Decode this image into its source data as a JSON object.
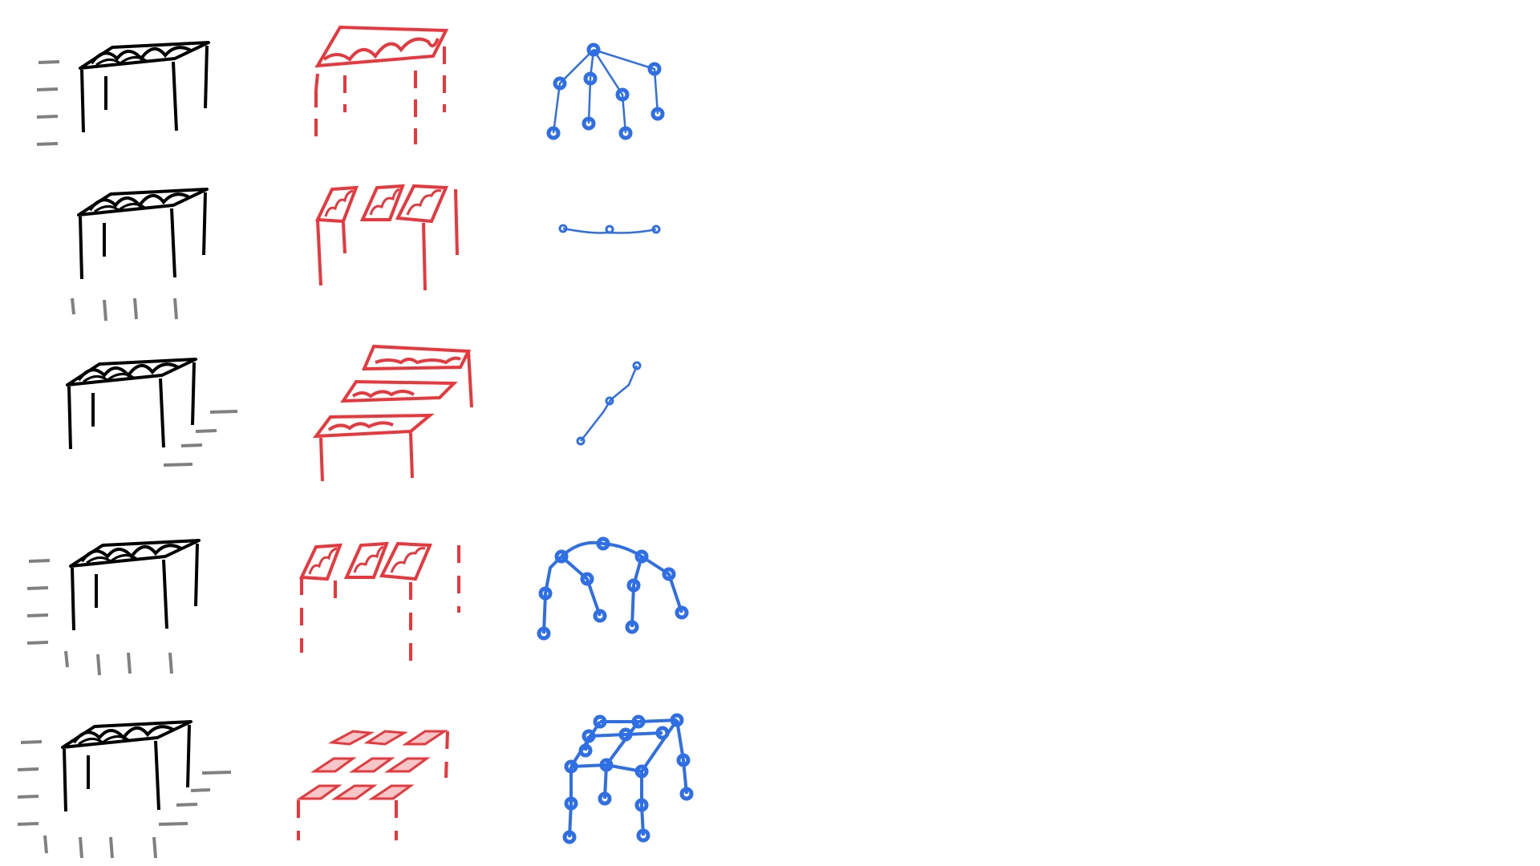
{
  "diagram": {
    "columns": [
      {
        "key": "table",
        "color": "#000000",
        "marks_color": "#808080"
      },
      {
        "key": "partition",
        "color": "#e8383d"
      },
      {
        "key": "graph",
        "color": "#2f6fe6"
      }
    ],
    "rows": [
      {
        "id": "row-1",
        "cut_marks": [
          "left"
        ],
        "partition": "top-and-legs-dashed",
        "graph": "tree"
      },
      {
        "id": "row-2",
        "cut_marks": [
          "bottom"
        ],
        "partition": "three-strips",
        "graph": "horizontal-chain"
      },
      {
        "id": "row-3",
        "cut_marks": [
          "right"
        ],
        "partition": "three-stacked-layers",
        "graph": "diagonal-chain"
      },
      {
        "id": "row-4",
        "cut_marks": [
          "left",
          "bottom"
        ],
        "partition": "three-strips-dashed-legs",
        "graph": "arched-tree"
      },
      {
        "id": "row-5",
        "cut_marks": [
          "left",
          "right",
          "bottom"
        ],
        "partition": "grid-of-nine",
        "graph": "lattice"
      }
    ]
  }
}
